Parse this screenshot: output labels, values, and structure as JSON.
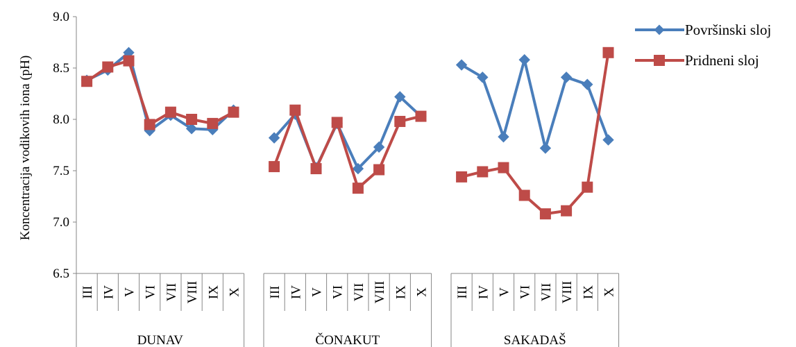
{
  "chart_data": {
    "type": "line",
    "title": "",
    "ylabel": "Koncentracija vodikovih iona (pH)",
    "xlabel": "",
    "ylim": [
      6.5,
      9.0
    ],
    "yticks": [
      "6.5",
      "7.0",
      "7.5",
      "8.0",
      "8.5",
      "9.0"
    ],
    "groups": [
      {
        "name": "DUNAV",
        "categories": [
          "III",
          "IV",
          "V",
          "VI",
          "VII",
          "VIII",
          "IX",
          "X"
        ]
      },
      {
        "name": "ČONAKUT",
        "categories": [
          "III",
          "IV",
          "V",
          "VI",
          "VII",
          "VIII",
          "IX",
          "X"
        ]
      },
      {
        "name": "SAKADAŠ",
        "categories": [
          "III",
          "IV",
          "V",
          "VI",
          "VII",
          "VIII",
          "IX",
          "X"
        ]
      }
    ],
    "series": [
      {
        "name": "Površinski sloj",
        "color": "#4a7ebb",
        "marker": "diamond",
        "values": [
          [
            8.38,
            8.48,
            8.65,
            7.89,
            8.04,
            7.91,
            7.9,
            8.09
          ],
          [
            7.82,
            8.05,
            7.53,
            7.96,
            7.52,
            7.73,
            8.22,
            8.03
          ],
          [
            8.53,
            8.41,
            7.83,
            8.58,
            7.72,
            8.41,
            8.34,
            7.8
          ]
        ]
      },
      {
        "name": "Pridneni sloj",
        "color": "#be4b48",
        "marker": "square",
        "values": [
          [
            8.37,
            8.51,
            8.57,
            7.95,
            8.07,
            8.0,
            7.96,
            8.07
          ],
          [
            7.54,
            8.09,
            7.52,
            7.97,
            7.33,
            7.51,
            7.98,
            8.03
          ],
          [
            7.44,
            7.49,
            7.53,
            7.26,
            7.08,
            7.11,
            7.34,
            8.65
          ]
        ]
      }
    ],
    "legend_position": "top-right",
    "grid": false
  }
}
